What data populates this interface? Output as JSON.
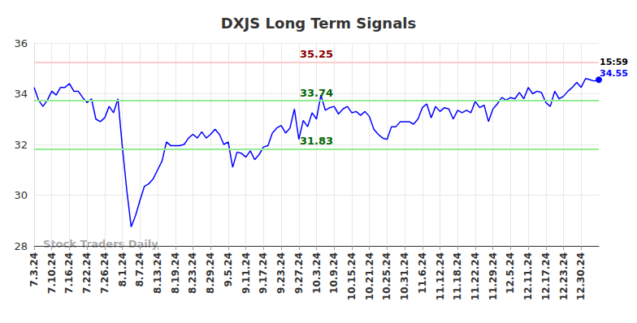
{
  "chart_data": {
    "type": "line",
    "title": "DXJS Long Term Signals",
    "categories": [
      "7.3.24",
      null,
      null,
      null,
      "7.10.24",
      null,
      null,
      null,
      "7.16.24",
      null,
      null,
      null,
      "7.22.24",
      null,
      null,
      null,
      "7.26.24",
      null,
      null,
      null,
      "8.1.24",
      null,
      null,
      null,
      "8.7.24",
      null,
      null,
      null,
      "8.13.24",
      null,
      null,
      null,
      "8.19.24",
      null,
      null,
      null,
      "8.23.24",
      null,
      null,
      null,
      "8.29.24",
      null,
      null,
      null,
      "9.5.24",
      null,
      null,
      null,
      "9.11.24",
      null,
      null,
      null,
      "9.17.24",
      null,
      null,
      null,
      "9.23.24",
      null,
      null,
      null,
      "9.27.24",
      null,
      null,
      null,
      "10.3.24",
      null,
      null,
      null,
      "10.9.24",
      null,
      null,
      null,
      "10.15.24",
      null,
      null,
      null,
      "10.21.24",
      null,
      null,
      null,
      "10.25.24",
      null,
      null,
      null,
      "10.31.24",
      null,
      null,
      null,
      "11.6.24",
      null,
      null,
      null,
      "11.12.24",
      null,
      null,
      null,
      "11.18.24",
      null,
      null,
      null,
      "11.22.24",
      null,
      null,
      null,
      "11.29.24",
      null,
      null,
      null,
      "12.5.24",
      null,
      null,
      null,
      "12.11.24",
      null,
      null,
      null,
      "12.17.24",
      null,
      null,
      null,
      "12.23.24",
      null,
      null,
      null,
      "12.30.24",
      null,
      null,
      null,
      null
    ],
    "values": [
      34.25,
      33.75,
      33.5,
      33.75,
      34.1,
      33.95,
      34.25,
      34.25,
      34.4,
      34.1,
      34.1,
      33.85,
      33.65,
      33.8,
      33.0,
      32.9,
      33.05,
      33.5,
      33.25,
      33.8,
      31.9,
      30.2,
      28.75,
      29.2,
      29.8,
      30.35,
      30.45,
      30.65,
      31.0,
      31.35,
      32.1,
      31.95,
      31.95,
      31.95,
      32.0,
      32.25,
      32.4,
      32.25,
      32.5,
      32.25,
      32.4,
      32.6,
      32.4,
      32.0,
      32.1,
      31.1,
      31.7,
      31.65,
      31.5,
      31.75,
      31.4,
      31.6,
      31.9,
      31.95,
      32.45,
      32.65,
      32.75,
      32.45,
      32.65,
      33.4,
      32.2,
      32.95,
      32.7,
      33.25,
      33.0,
      33.95,
      33.35,
      33.45,
      33.5,
      33.2,
      33.4,
      33.5,
      33.25,
      33.3,
      33.15,
      33.3,
      33.1,
      32.6,
      32.4,
      32.25,
      32.2,
      32.7,
      32.7,
      32.9,
      32.9,
      32.9,
      32.8,
      33.0,
      33.45,
      33.6,
      33.05,
      33.5,
      33.3,
      33.45,
      33.4,
      33.0,
      33.35,
      33.25,
      33.35,
      33.25,
      33.7,
      33.45,
      33.55,
      32.9,
      33.4,
      33.6,
      33.85,
      33.75,
      33.85,
      33.8,
      34.05,
      33.8,
      34.25,
      34.0,
      34.1,
      34.05,
      33.65,
      33.5,
      34.1,
      33.8,
      33.9,
      34.1,
      34.25,
      34.45,
      34.25,
      34.6,
      34.55,
      34.5,
      34.55
    ],
    "color": "#0000ff",
    "ylim": [
      28,
      36
    ],
    "yticks": [
      28,
      30,
      32,
      34,
      36
    ],
    "grid": true,
    "reference_lines": [
      {
        "value": 35.25,
        "color": "#ffcccc"
      },
      {
        "value": 33.74,
        "color": "#90ee90"
      },
      {
        "value": 31.83,
        "color": "#90ee90"
      }
    ],
    "end_label": {
      "time": "15:59",
      "value": 34.55
    },
    "watermark": "Stock Traders Daily"
  }
}
